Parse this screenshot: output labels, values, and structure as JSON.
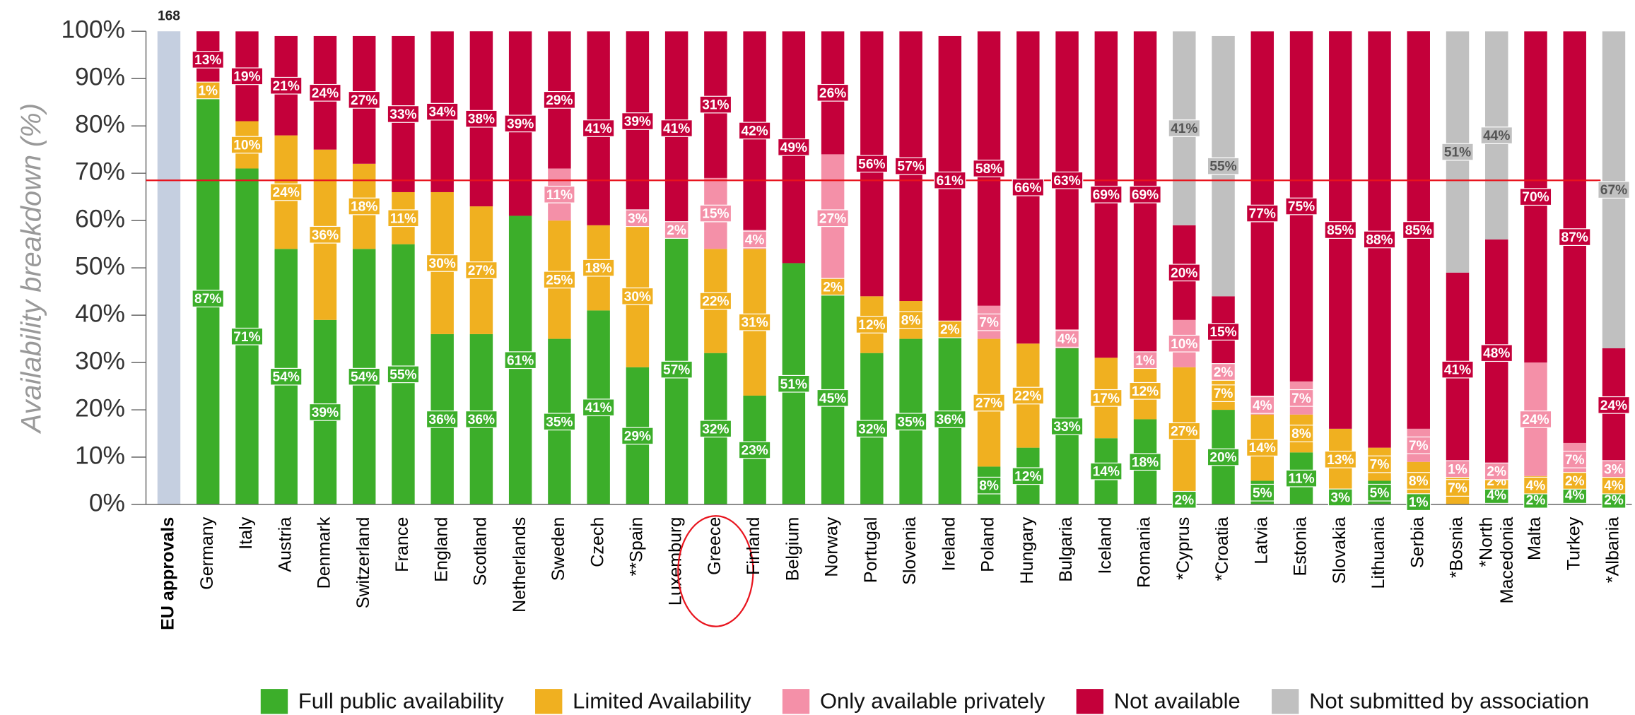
{
  "chart_data": {
    "type": "stacked_bar",
    "ylabel": "Availability breakdown (%)",
    "ylim": [
      0,
      100
    ],
    "yticks": [
      {
        "value": 0,
        "label": "0%"
      },
      {
        "value": 10,
        "label": "10%"
      },
      {
        "value": 20,
        "label": "20%"
      },
      {
        "value": 30,
        "label": "30%"
      },
      {
        "value": 40,
        "label": "40%"
      },
      {
        "value": 50,
        "label": "50%"
      },
      {
        "value": 60,
        "label": "60%"
      },
      {
        "value": 70,
        "label": "70%"
      },
      {
        "value": 80,
        "label": "80%"
      },
      {
        "value": 90,
        "label": "90%"
      },
      {
        "value": 100,
        "label": "100%"
      }
    ],
    "reference_bar": {
      "category": "EU approvals",
      "count": 168,
      "color": "#c5cfe0"
    },
    "threshold_line": {
      "value": 68.5,
      "color": "#e8141e"
    },
    "highlight": "Greece",
    "categories": [
      "Germany",
      "Italy",
      "Austria",
      "Denmark",
      "Switzerland",
      "France",
      "England",
      "Scotland",
      "Netherlands",
      "Sweden",
      "Czech",
      "**Spain",
      "Luxemburg",
      "Greece",
      "Finland",
      "Belgium",
      "Norway",
      "Portugal",
      "Slovenia",
      "Ireland",
      "Poland",
      "Hungary",
      "Bulgaria",
      "Iceland",
      "Romania",
      "*Cyprus",
      "*Croatia",
      "Latvia",
      "Estonia",
      "Slovakia",
      "Lithuania",
      "Serbia",
      "*Bosnia",
      [
        "*North",
        "Macedonia"
      ],
      "Malta",
      "Turkey",
      "*Albania"
    ],
    "series": [
      {
        "name": "Full public availability",
        "color": "#3cae2a",
        "values": [
          87,
          71,
          54,
          39,
          54,
          55,
          36,
          36,
          61,
          35,
          41,
          29,
          57,
          32,
          23,
          51,
          45,
          32,
          35,
          36,
          8,
          12,
          33,
          14,
          18,
          2,
          20,
          5,
          11,
          3,
          5,
          1,
          null,
          4,
          2,
          4,
          2
        ],
        "value_labels": [
          "87%",
          "71%",
          "54%",
          "39%",
          "54%",
          "55%",
          "36%",
          "36%",
          "61%",
          "35%",
          "41%",
          "29%",
          "57%",
          "32%",
          "23%",
          "51%",
          "45%",
          "32%",
          "35%",
          "36%",
          "8%",
          "12%",
          "33%",
          "14%",
          "18%",
          "2%",
          "20%",
          "5%",
          "11%",
          "3%",
          "5%",
          "1%",
          null,
          "4%",
          "2%",
          "4%",
          "2%"
        ]
      },
      {
        "name": "Limited Availability",
        "color": "#f0b020",
        "values": [
          1,
          10,
          24,
          36,
          18,
          11,
          30,
          27,
          null,
          25,
          18,
          30,
          null,
          22,
          31,
          null,
          2,
          12,
          8,
          2,
          27,
          22,
          null,
          17,
          12,
          27,
          7,
          14,
          8,
          13,
          7,
          8,
          7,
          2,
          4,
          2,
          4
        ],
        "value_labels": [
          "1%",
          "10%",
          "24%",
          "36%",
          "18%",
          "11%",
          "30%",
          "27%",
          null,
          "25%",
          "18%",
          "30%",
          null,
          "22%",
          "31%",
          null,
          "2%",
          "12%",
          "8%",
          "2%",
          "27%",
          "22%",
          null,
          "17%",
          "12%",
          "27%",
          "7%",
          "14%",
          "8%",
          "13%",
          "7%",
          "8%",
          "7%",
          "2%",
          "4%",
          "2%",
          "4%"
        ]
      },
      {
        "name": "Only available privately",
        "color": "#f490a8",
        "values": [
          null,
          null,
          null,
          null,
          null,
          null,
          null,
          null,
          null,
          11,
          null,
          3,
          2,
          15,
          4,
          null,
          27,
          null,
          null,
          null,
          7,
          null,
          4,
          null,
          1,
          10,
          2,
          4,
          7,
          null,
          null,
          7,
          1,
          2,
          24,
          7,
          3
        ],
        "value_labels": [
          null,
          null,
          null,
          null,
          null,
          null,
          null,
          null,
          null,
          "11%",
          null,
          "3%",
          "2%",
          "15%",
          "4%",
          null,
          "27%",
          null,
          null,
          null,
          "7%",
          null,
          "4%",
          null,
          "1%",
          "10%",
          "2%",
          "4%",
          "7%",
          null,
          null,
          "7%",
          "1%",
          "2%",
          "24%",
          "7%",
          "3%"
        ]
      },
      {
        "name": "Not available",
        "color": "#c4003a",
        "values": [
          13,
          19,
          21,
          24,
          27,
          33,
          34,
          38,
          39,
          29,
          41,
          39,
          41,
          31,
          42,
          49,
          26,
          56,
          57,
          61,
          58,
          66,
          63,
          69,
          69,
          20,
          15,
          77,
          75,
          85,
          88,
          85,
          41,
          48,
          70,
          87,
          24
        ],
        "value_labels": [
          "13%",
          "19%",
          "21%",
          "24%",
          "27%",
          "33%",
          "34%",
          "38%",
          "39%",
          "29%",
          "41%",
          "39%",
          "41%",
          "31%",
          "42%",
          "49%",
          "26%",
          "56%",
          "57%",
          "61%",
          "58%",
          "66%",
          "63%",
          "69%",
          "69%",
          "20%",
          "15%",
          "77%",
          "75%",
          "85%",
          "88%",
          "85%",
          "41%",
          "48%",
          "70%",
          "87%",
          "24%"
        ]
      },
      {
        "name": "Not submitted by association",
        "color": "#c0c0c0",
        "values": [
          null,
          1,
          null,
          null,
          null,
          null,
          null,
          null,
          null,
          null,
          null,
          null,
          null,
          null,
          null,
          null,
          null,
          null,
          null,
          null,
          null,
          null,
          null,
          null,
          null,
          41,
          55,
          null,
          null,
          null,
          null,
          null,
          51,
          44,
          null,
          null,
          67
        ],
        "value_labels": [
          null,
          null,
          null,
          null,
          null,
          null,
          null,
          null,
          null,
          null,
          null,
          null,
          null,
          null,
          null,
          null,
          null,
          null,
          null,
          null,
          null,
          null,
          null,
          null,
          null,
          "41%",
          "55%",
          null,
          null,
          null,
          null,
          null,
          "51%",
          "44%",
          null,
          null,
          "67%"
        ]
      }
    ]
  }
}
